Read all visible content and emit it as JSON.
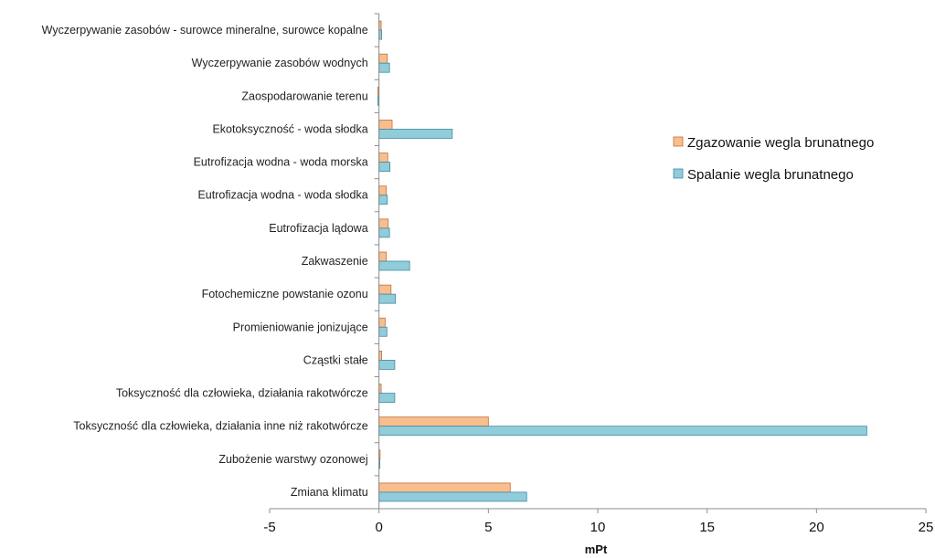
{
  "chart_data": {
    "type": "bar",
    "orientation": "horizontal",
    "categories": [
      "Zmiana klimatu",
      "Zubożenie warstwy ozonowej",
      "Toksyczność dla człowieka, działania inne niż rakotwórcze",
      "Toksyczność dla człowieka, działania  rakotwórcze",
      "Cząstki stałe",
      "Promieniowanie jonizujące",
      "Fotochemiczne powstanie ozonu",
      "Zakwaszenie",
      "Eutrofizacja lądowa",
      "Eutrofizacja wodna - woda słodka",
      "Eutrofizacja wodna - woda morska",
      "Ekotoksyczność - woda słodka",
      "Zaospodarowanie terenu",
      "Wyczerpywanie zasobów wodnych",
      "Wyczerpywanie zasobów - surowce mineralne, surowce kopalne"
    ],
    "series": [
      {
        "name": "Zgazowanie wegla brunatnego",
        "color": "#F9BE8E",
        "edge": "#C0703A",
        "values": [
          6.0,
          0.05,
          5.0,
          0.1,
          0.12,
          0.28,
          0.55,
          0.33,
          0.42,
          0.33,
          0.4,
          0.6,
          -0.05,
          0.38,
          0.1
        ]
      },
      {
        "name": "Spalanie wegla brunatnego",
        "color": "#91CCDA",
        "edge": "#3F8CA2",
        "values": [
          6.75,
          0.04,
          22.3,
          0.72,
          0.72,
          0.36,
          0.75,
          1.4,
          0.48,
          0.38,
          0.5,
          3.35,
          -0.05,
          0.48,
          0.12
        ]
      }
    ],
    "xlabel": "mPt",
    "ylabel": "",
    "title": "",
    "xlim": [
      -5,
      25
    ],
    "xticks": [
      -5,
      0,
      5,
      10,
      15,
      20,
      25
    ],
    "grid": false,
    "legend": "right"
  }
}
